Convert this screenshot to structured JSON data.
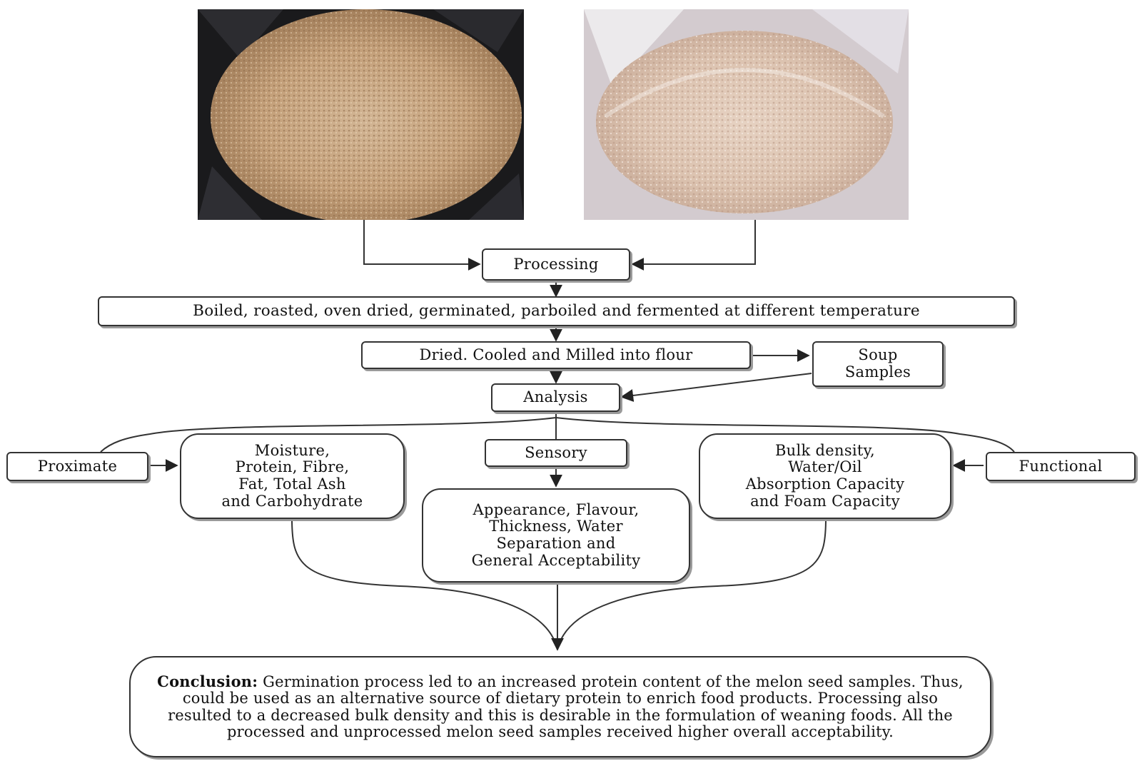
{
  "photos": {
    "left": {
      "name": "melon-seed-flour-dark-bag"
    },
    "right": {
      "name": "melon-seed-flour-clear-bag"
    }
  },
  "nodes": {
    "processing": "Processing",
    "treatments": "Boiled, roasted, oven dried,  germinated, parboiled and fermented at different temperature",
    "milling": "Dried.  Cooled and Milled into  flour",
    "soup": "Soup\nSamples",
    "analysis": "Analysis",
    "proximate": "Proximate",
    "proximate_items": "Moisture,\nProtein, Fibre,\nFat, Total Ash\nand Carbohydrate",
    "sensory": "Sensory",
    "sensory_items": "Appearance, Flavour,\nThickness, Water\nSeparation and\nGeneral Acceptability",
    "functional": "Functional",
    "functional_items": "Bulk density,\nWater/Oil\nAbsorption Capacity\nand Foam Capacity"
  },
  "conclusion": {
    "label": "Conclusion:",
    "text": "  Germination process led to an increased protein content of the melon seed samples. Thus, could be used as an alternative source of dietary protein to enrich food products. Processing also resulted to a decreased bulk density and this is desirable in the formulation of weaning foods. All the processed and unprocessed melon seed samples received higher overall acceptability."
  },
  "colors": {
    "line": "#333333",
    "shadow": "#9a9a9a",
    "seed_dark_bg": "#1a1a1c",
    "seed_light_bg": "#d8d5d8"
  }
}
